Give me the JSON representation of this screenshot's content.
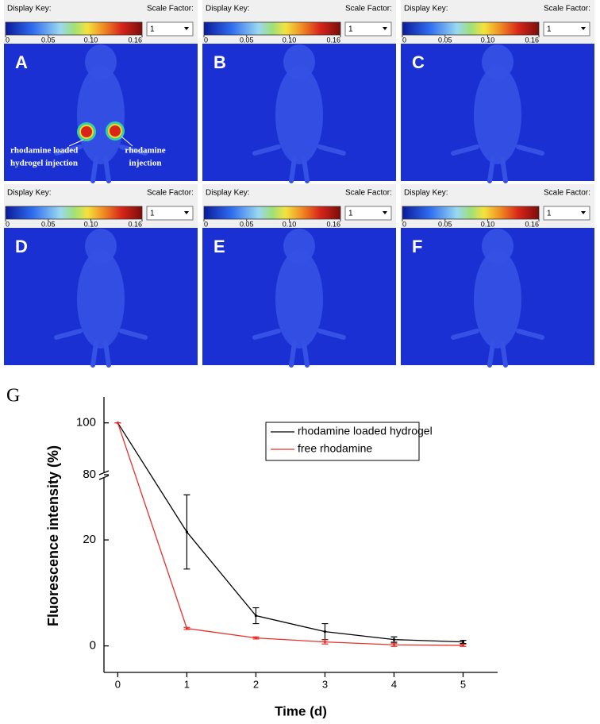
{
  "panels": {
    "display_key_label": "Display Key:",
    "scale_factor_label": "Scale Factor:",
    "scale_factor_value": "1",
    "colorbar": {
      "range": [
        0,
        0.16
      ],
      "ticks": [
        0,
        0.05,
        {
          "value": 0.1,
          "label": "0.10"
        },
        0.16
      ]
    },
    "letters": [
      "A",
      "B",
      "C",
      "D",
      "E",
      "F"
    ],
    "annotations": [
      [
        "rhodamine loaded",
        "hydrogel injection"
      ],
      [
        "rhodamine",
        "injection"
      ]
    ]
  },
  "chart_data": {
    "type": "line",
    "panel_label": "G",
    "x_label": "Time (d)",
    "y_label": "Fluorescence intensity (%)",
    "x": [
      0,
      1,
      2,
      3,
      4,
      5
    ],
    "xlim": [
      -0.2,
      5.5
    ],
    "xticks": [
      0,
      1,
      2,
      3,
      4,
      5
    ],
    "ylim": [
      -5,
      110
    ],
    "ybreak": [
      32,
      80
    ],
    "yticks": [
      0,
      20,
      80,
      100
    ],
    "legend": "top-right",
    "series": [
      {
        "name": "rhodamine loaded hydrogel",
        "color": "#000000",
        "values": [
          100,
          21.5,
          5.7,
          2.7,
          1.2,
          0.75
        ],
        "errors": [
          0,
          7,
          1.5,
          1.5,
          0.5,
          0.3
        ]
      },
      {
        "name": "free rhodamine",
        "color": "#e8302a",
        "values": [
          100,
          3.3,
          1.5,
          0.75,
          0.2,
          0.1
        ],
        "errors": [
          0,
          0.2,
          0.2,
          0.4,
          0.3,
          0.2
        ]
      }
    ]
  }
}
